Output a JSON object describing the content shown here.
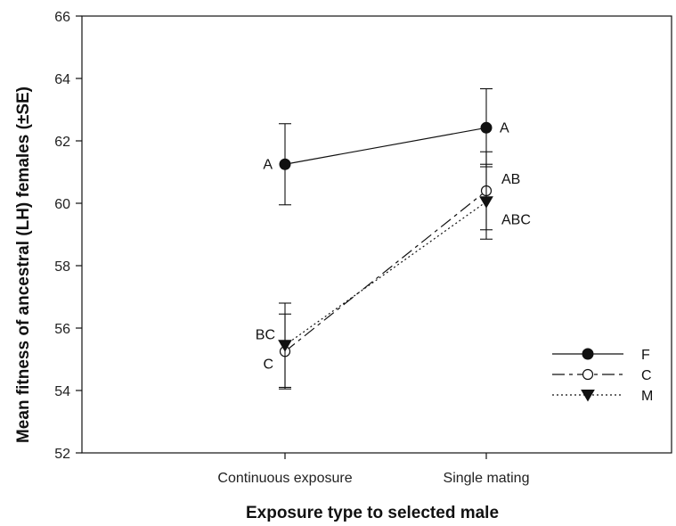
{
  "chart_data": {
    "type": "line",
    "title": "",
    "xlabel": "Exposure type to selected male",
    "ylabel": "Mean fitness of ancestral (LH) females (±SE)",
    "categories": [
      "Continuous exposure",
      "Single mating"
    ],
    "ylim": [
      52,
      66
    ],
    "yticks": [
      52,
      54,
      56,
      58,
      60,
      62,
      64,
      66
    ],
    "grid": false,
    "legend_position": "lower-right",
    "series": [
      {
        "name": "F",
        "marker": "filled-circle",
        "line_style": "solid",
        "values": [
          61.25,
          62.42
        ],
        "error": [
          1.3,
          1.25
        ],
        "letters": [
          "A",
          "A"
        ]
      },
      {
        "name": "C",
        "marker": "open-circle",
        "line_style": "dashed",
        "values": [
          55.25,
          60.4
        ],
        "error": [
          1.2,
          1.25
        ],
        "letters": [
          "C",
          "AB"
        ]
      },
      {
        "name": "M",
        "marker": "filled-triangle-down",
        "line_style": "dotted",
        "values": [
          55.45,
          60.05
        ],
        "error": [
          1.35,
          1.2
        ],
        "letters": [
          "BC",
          "ABC"
        ]
      }
    ],
    "colors": {
      "line": "#111111",
      "marker_fill": "#111111",
      "open_fill": "#ffffff"
    }
  }
}
